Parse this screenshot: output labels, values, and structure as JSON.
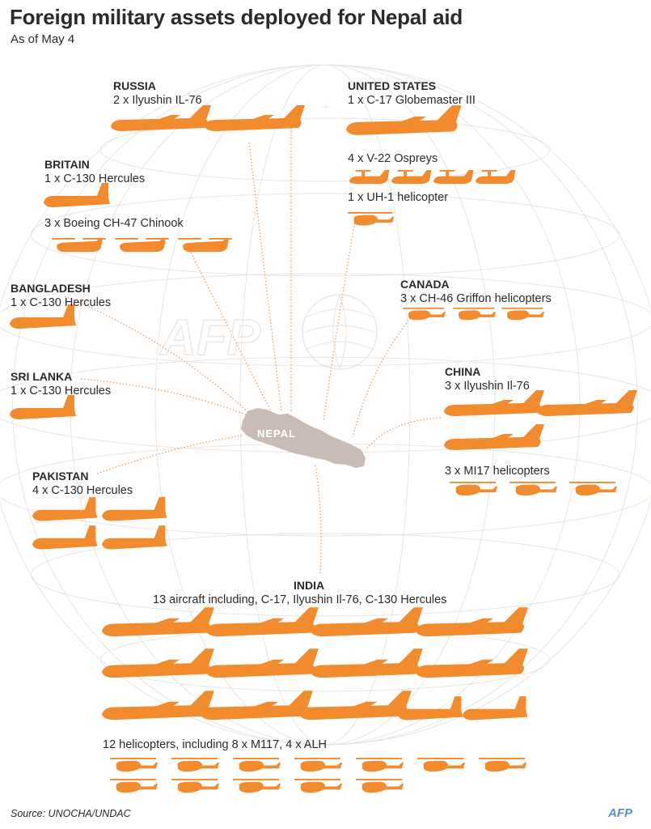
{
  "title": "Foreign military assets deployed for Nepal aid",
  "subtitle": "As of May 4",
  "center_label": "NEPAL",
  "source": "Source: UNOCHA/UNDAC",
  "logo_text": "AFP",
  "colors": {
    "aircraft": "#f28a2e",
    "nepal": "#c9bcb6",
    "lines": "#e79a5c",
    "globe": "#ece4df",
    "text": "#2b2b2b"
  },
  "groups": [
    {
      "id": "russia",
      "country": "RUSSIA",
      "assets": [
        "2 x Ilyushin IL-76"
      ]
    },
    {
      "id": "united-states",
      "country": "UNITED STATES",
      "assets": [
        "1 x C-17 Globemaster III",
        "4 x V-22 Ospreys",
        "1 x UH-1 helicopter"
      ]
    },
    {
      "id": "britain",
      "country": "BRITAIN",
      "assets": [
        "1 x  C-130 Hercules",
        "3 x Boeing CH-47 Chinook"
      ]
    },
    {
      "id": "bangladesh",
      "country": "BANGLADESH",
      "assets": [
        "1 x  C-130 Hercules"
      ]
    },
    {
      "id": "canada",
      "country": "CANADA",
      "assets": [
        "3 x CH-46 Griffon helicopters"
      ]
    },
    {
      "id": "sri-lanka",
      "country": "SRI LANKA",
      "assets": [
        "1 x  C-130 Hercules"
      ]
    },
    {
      "id": "china",
      "country": "CHINA",
      "assets": [
        "3 x Ilyushin Il-76",
        "3 x MI17 helicopters"
      ]
    },
    {
      "id": "pakistan",
      "country": "PAKISTAN",
      "assets": [
        "4 x C-130 Hercules"
      ]
    },
    {
      "id": "india",
      "country": "INDIA",
      "assets": [
        "13 aircraft including, C-17, Ilyushin Il-76, C-130 Hercules",
        "12 helicopters, including 8 x M117, 4 x ALH"
      ]
    }
  ]
}
